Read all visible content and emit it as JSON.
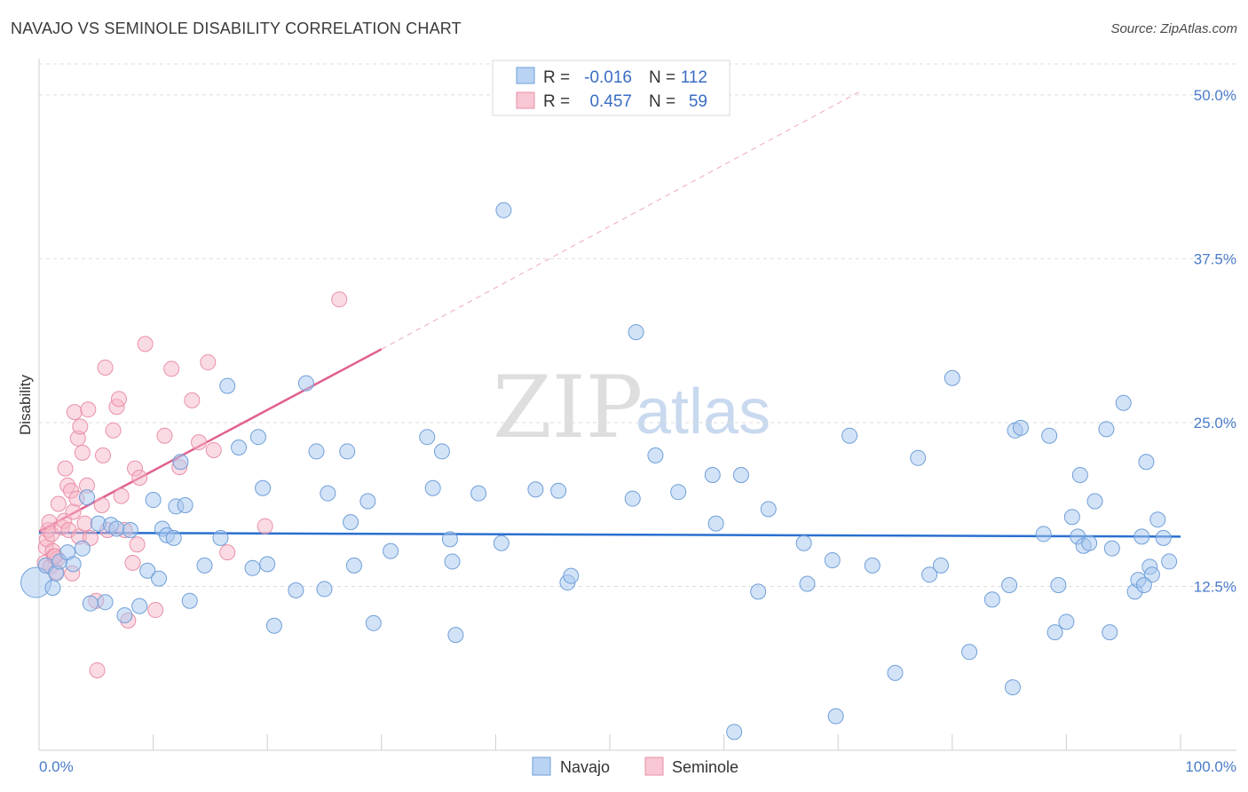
{
  "title": "NAVAJO VS SEMINOLE DISABILITY CORRELATION CHART",
  "source": "Source: ZipAtlas.com",
  "watermark": {
    "zip": "ZIP",
    "atlas": "atlas"
  },
  "colors": {
    "navajo_fill": "#a8c8f0",
    "navajo_stroke": "#6f9fd8",
    "navajo_line": "#2a6fcf",
    "seminole_fill": "#f7b8c8",
    "seminole_stroke": "#e890a8",
    "seminole_line": "#e06090",
    "tick_label": "#4a7cc9",
    "grid": "#dddddd"
  },
  "legend": {
    "rows": [
      {
        "r_label": "R =",
        "r_value": "-0.016",
        "n_label": "N =",
        "n_value": "112"
      },
      {
        "r_label": "R =",
        "r_value": "0.457",
        "n_label": "N =",
        "n_value": "59"
      }
    ]
  },
  "chart_data": {
    "type": "scatter",
    "title": "NAVAJO VS SEMINOLE DISABILITY CORRELATION CHART",
    "xlabel": "",
    "ylabel": "Disability",
    "xlim": [
      0,
      100
    ],
    "ylim": [
      0,
      52.5
    ],
    "x_tick_labels": {
      "left": "0.0%",
      "right": "100.0%"
    },
    "y_ticks": [
      {
        "value": 12.5,
        "label": "12.5%"
      },
      {
        "value": 25.0,
        "label": "25.0%"
      },
      {
        "value": 37.5,
        "label": "37.5%"
      },
      {
        "value": 50.0,
        "label": "50.0%"
      }
    ],
    "series": [
      {
        "name": "Navajo",
        "R": -0.016,
        "N": 112,
        "trend": {
          "x0": 0,
          "y0": 16.6,
          "x1": 100,
          "y1": 16.3
        },
        "points": [
          [
            0.2,
            12.8
          ],
          [
            0.6,
            14.1
          ],
          [
            1.2,
            12.4
          ],
          [
            1.5,
            13.5
          ],
          [
            1.8,
            14.4
          ],
          [
            2.5,
            15.1
          ],
          [
            3.0,
            14.2
          ],
          [
            3.8,
            15.4
          ],
          [
            4.2,
            19.3
          ],
          [
            4.5,
            11.2
          ],
          [
            5.2,
            17.3
          ],
          [
            5.8,
            11.3
          ],
          [
            6.3,
            17.2
          ],
          [
            6.8,
            16.9
          ],
          [
            7.5,
            10.3
          ],
          [
            8.0,
            16.8
          ],
          [
            8.8,
            11.0
          ],
          [
            9.5,
            13.7
          ],
          [
            10.0,
            19.1
          ],
          [
            10.5,
            13.1
          ],
          [
            10.8,
            16.9
          ],
          [
            11.2,
            16.4
          ],
          [
            11.8,
            16.2
          ],
          [
            12.0,
            18.6
          ],
          [
            12.4,
            22.0
          ],
          [
            12.8,
            18.7
          ],
          [
            13.2,
            11.4
          ],
          [
            14.5,
            14.1
          ],
          [
            15.9,
            16.2
          ],
          [
            16.5,
            27.8
          ],
          [
            17.5,
            23.1
          ],
          [
            18.7,
            13.9
          ],
          [
            19.2,
            23.9
          ],
          [
            19.6,
            20.0
          ],
          [
            20.0,
            14.2
          ],
          [
            20.6,
            9.5
          ],
          [
            22.5,
            12.2
          ],
          [
            23.4,
            28.0
          ],
          [
            24.3,
            22.8
          ],
          [
            25.0,
            12.3
          ],
          [
            25.3,
            19.6
          ],
          [
            27.0,
            22.8
          ],
          [
            27.3,
            17.4
          ],
          [
            27.6,
            14.1
          ],
          [
            28.8,
            19.0
          ],
          [
            29.3,
            9.7
          ],
          [
            30.8,
            15.2
          ],
          [
            34.0,
            23.9
          ],
          [
            34.5,
            20.0
          ],
          [
            35.3,
            22.8
          ],
          [
            36.0,
            16.1
          ],
          [
            36.2,
            14.4
          ],
          [
            36.5,
            8.8
          ],
          [
            38.5,
            19.6
          ],
          [
            40.5,
            15.8
          ],
          [
            40.7,
            41.2
          ],
          [
            43.5,
            19.9
          ],
          [
            45.5,
            19.8
          ],
          [
            46.3,
            12.8
          ],
          [
            46.6,
            13.3
          ],
          [
            52.0,
            19.2
          ],
          [
            52.3,
            31.9
          ],
          [
            54.0,
            22.5
          ],
          [
            56.0,
            19.7
          ],
          [
            59.0,
            21.0
          ],
          [
            59.3,
            17.3
          ],
          [
            60.9,
            1.4
          ],
          [
            61.5,
            21.0
          ],
          [
            63.0,
            12.1
          ],
          [
            63.9,
            18.4
          ],
          [
            67.0,
            15.8
          ],
          [
            67.3,
            12.7
          ],
          [
            69.5,
            14.5
          ],
          [
            69.8,
            2.6
          ],
          [
            71.0,
            24.0
          ],
          [
            73.0,
            14.1
          ],
          [
            75.0,
            5.9
          ],
          [
            77.0,
            22.3
          ],
          [
            78.0,
            13.4
          ],
          [
            79.0,
            14.1
          ],
          [
            80.0,
            28.4
          ],
          [
            81.5,
            7.5
          ],
          [
            83.5,
            11.5
          ],
          [
            85.0,
            12.6
          ],
          [
            85.3,
            4.8
          ],
          [
            85.5,
            24.4
          ],
          [
            86.0,
            24.6
          ],
          [
            88.0,
            16.5
          ],
          [
            88.5,
            24.0
          ],
          [
            89.0,
            9.0
          ],
          [
            89.3,
            12.6
          ],
          [
            90.0,
            9.8
          ],
          [
            90.5,
            17.8
          ],
          [
            91.0,
            16.3
          ],
          [
            91.2,
            21.0
          ],
          [
            91.5,
            15.6
          ],
          [
            92.0,
            15.8
          ],
          [
            92.5,
            19.0
          ],
          [
            93.5,
            24.5
          ],
          [
            93.8,
            9.0
          ],
          [
            94.0,
            15.4
          ],
          [
            95.0,
            26.5
          ],
          [
            96.0,
            12.1
          ],
          [
            96.3,
            13.0
          ],
          [
            96.6,
            16.3
          ],
          [
            97.0,
            22.0
          ],
          [
            97.3,
            14.0
          ],
          [
            97.5,
            13.4
          ],
          [
            98.0,
            17.6
          ],
          [
            98.5,
            16.2
          ],
          [
            99.0,
            14.4
          ],
          [
            96.8,
            12.6
          ]
        ]
      },
      {
        "name": "Seminole",
        "R": 0.457,
        "N": 59,
        "trend": {
          "x0": 0,
          "y0": 16.7,
          "x1": 30,
          "y1": 30.6
        },
        "trend_extension": {
          "x0": 30,
          "y0": 30.6,
          "x1": 72,
          "y1": 50.3
        },
        "points": [
          [
            0.5,
            14.3
          ],
          [
            0.6,
            15.5
          ],
          [
            0.7,
            16.1
          ],
          [
            0.8,
            16.8
          ],
          [
            0.9,
            17.4
          ],
          [
            1.0,
            14.0
          ],
          [
            1.1,
            16.5
          ],
          [
            1.2,
            15.2
          ],
          [
            1.3,
            14.8
          ],
          [
            1.5,
            13.6
          ],
          [
            1.6,
            14.6
          ],
          [
            1.7,
            18.8
          ],
          [
            2.0,
            17.0
          ],
          [
            2.2,
            17.5
          ],
          [
            2.3,
            21.5
          ],
          [
            2.5,
            20.2
          ],
          [
            2.6,
            16.8
          ],
          [
            2.8,
            19.8
          ],
          [
            3.0,
            18.2
          ],
          [
            3.1,
            25.8
          ],
          [
            3.3,
            19.2
          ],
          [
            3.4,
            23.8
          ],
          [
            3.5,
            16.3
          ],
          [
            3.6,
            24.7
          ],
          [
            3.8,
            22.7
          ],
          [
            4.0,
            17.3
          ],
          [
            4.2,
            20.2
          ],
          [
            4.3,
            26.0
          ],
          [
            4.5,
            16.2
          ],
          [
            5.0,
            11.4
          ],
          [
            5.1,
            6.1
          ],
          [
            5.5,
            18.7
          ],
          [
            5.6,
            22.5
          ],
          [
            5.8,
            29.2
          ],
          [
            6.0,
            16.8
          ],
          [
            6.5,
            24.4
          ],
          [
            6.8,
            26.2
          ],
          [
            7.0,
            26.8
          ],
          [
            7.2,
            19.4
          ],
          [
            7.5,
            16.8
          ],
          [
            7.8,
            9.9
          ],
          [
            8.2,
            14.3
          ],
          [
            8.4,
            21.5
          ],
          [
            8.6,
            15.7
          ],
          [
            8.8,
            20.8
          ],
          [
            9.3,
            31.0
          ],
          [
            10.2,
            10.7
          ],
          [
            11.0,
            24.0
          ],
          [
            11.6,
            29.1
          ],
          [
            12.3,
            21.6
          ],
          [
            13.4,
            26.7
          ],
          [
            14.0,
            23.5
          ],
          [
            14.8,
            29.6
          ],
          [
            15.3,
            22.9
          ],
          [
            16.5,
            15.1
          ],
          [
            19.8,
            17.1
          ],
          [
            26.3,
            34.4
          ],
          [
            2.9,
            13.5
          ],
          [
            1.4,
            14.8
          ]
        ]
      }
    ]
  },
  "bottom_legend": {
    "navajo": "Navajo",
    "seminole": "Seminole"
  }
}
